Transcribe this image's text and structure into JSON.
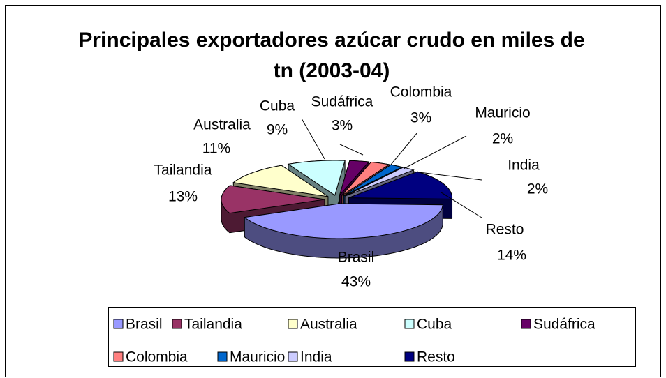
{
  "chart_data": {
    "type": "pie",
    "title": "Principales exportadores azúcar crudo en miles de tn (2003-04)",
    "categories": [
      "Brasil",
      "Tailandia",
      "Australia",
      "Cuba",
      "Sudáfrica",
      "Colombia",
      "Mauricio",
      "India",
      "Resto"
    ],
    "values": [
      43,
      13,
      11,
      9,
      3,
      3,
      2,
      2,
      14
    ],
    "value_labels": [
      "43%",
      "13%",
      "11%",
      "9%",
      "3%",
      "3%",
      "2%",
      "2%",
      "14%"
    ],
    "colors": [
      "#9999FF",
      "#993366",
      "#FFFFCC",
      "#CCFFFF",
      "#660066",
      "#FF8080",
      "#0066CC",
      "#CCCCFF",
      "#000080"
    ],
    "legend": "bottom"
  }
}
